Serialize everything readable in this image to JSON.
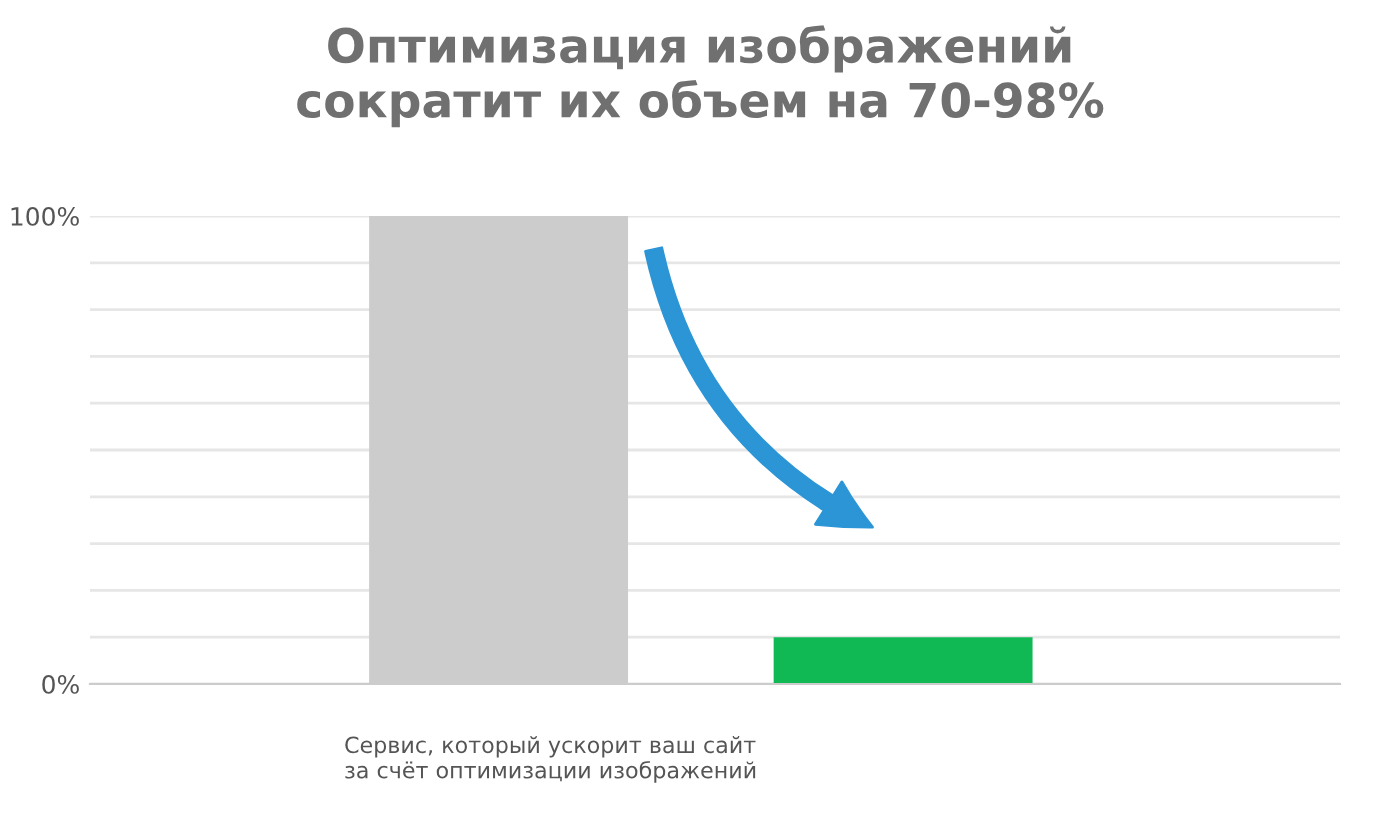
{
  "chart_data": {
    "type": "bar",
    "title": "Оптимизация изображений\nсократит их объем на 70-98%",
    "categories": [
      null,
      null
    ],
    "values": [
      100,
      10
    ],
    "colors": [
      "#cccccc",
      "#11b954"
    ],
    "ylim": [
      0,
      100
    ],
    "yticks": [
      {
        "value": 0,
        "label": "0%"
      },
      {
        "value": 10,
        "label": null
      },
      {
        "value": 20,
        "label": null
      },
      {
        "value": 30,
        "label": null
      },
      {
        "value": 40,
        "label": null
      },
      {
        "value": 50,
        "label": null
      },
      {
        "value": 60,
        "label": null
      },
      {
        "value": 70,
        "label": null
      },
      {
        "value": 80,
        "label": null
      },
      {
        "value": 90,
        "label": null
      },
      {
        "value": 100,
        "label": "100%"
      }
    ],
    "grid": "y",
    "annotations": [
      "Сервис, который ускорит ваш сайт\nза счёт оптимизации изображений"
    ]
  }
}
